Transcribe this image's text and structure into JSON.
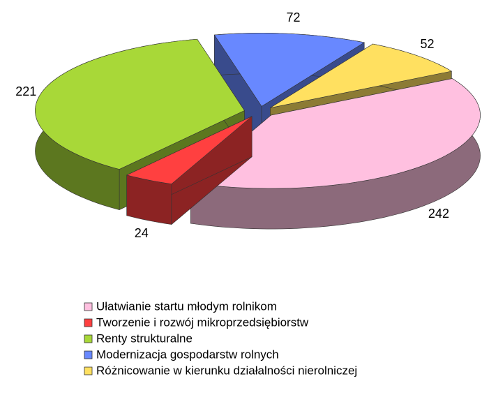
{
  "chart_data": {
    "type": "pie",
    "categories": [
      "Ułatwianie startu młodym rolnikom",
      "Tworzenie i rozwój mikroprzedsiębiorstw",
      "Renty strukturalne",
      "Modernizacja gospodarstw rolnych",
      "Różnicowanie w kierunku działalności nierolniczej"
    ],
    "values": [
      242,
      24,
      221,
      72,
      52
    ],
    "colors": [
      "#ffc0e0",
      "#ff4040",
      "#a8d838",
      "#6888ff",
      "#ffe060"
    ]
  }
}
